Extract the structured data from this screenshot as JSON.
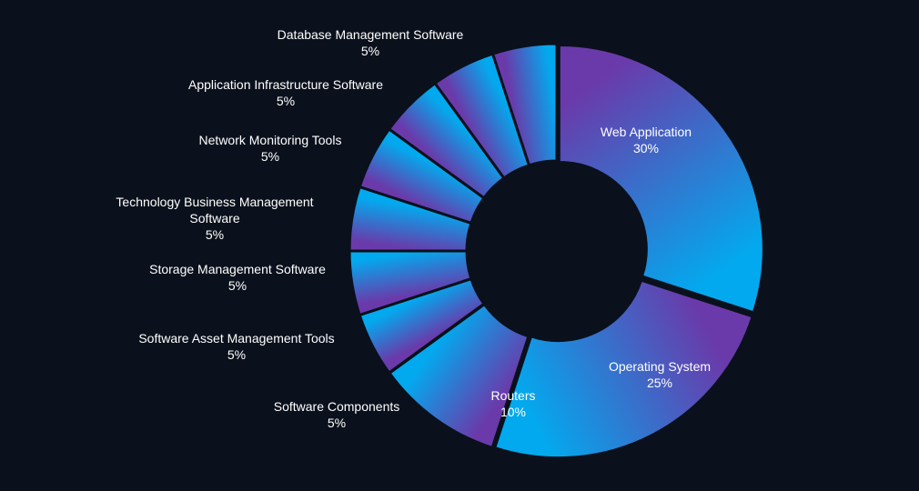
{
  "chart_data": {
    "type": "pie",
    "variant": "donut",
    "title": "",
    "slices": [
      {
        "label_lines": [
          "Web Application"
        ],
        "label": "Web Application",
        "value": 30,
        "value_text": "30%",
        "label_place": "inside"
      },
      {
        "label_lines": [
          "Operating System"
        ],
        "label": "Operating System",
        "value": 25,
        "value_text": "25%",
        "label_place": "inside"
      },
      {
        "label_lines": [
          "Routers"
        ],
        "label": "Routers",
        "value": 10,
        "value_text": "10%",
        "label_place": "inside"
      },
      {
        "label_lines": [
          "Software Components"
        ],
        "label": "Software Components",
        "value": 5,
        "value_text": "5%",
        "label_place": "outside"
      },
      {
        "label_lines": [
          "Software Asset Management Tools"
        ],
        "label": "Software Asset Management Tools",
        "value": 5,
        "value_text": "5%",
        "label_place": "outside"
      },
      {
        "label_lines": [
          "Storage Management Software"
        ],
        "label": "Storage Management Software",
        "value": 5,
        "value_text": "5%",
        "label_place": "outside"
      },
      {
        "label_lines": [
          "Technology Business Management",
          "Software"
        ],
        "label": "Technology Business Management Software",
        "value": 5,
        "value_text": "5%",
        "label_place": "outside"
      },
      {
        "label_lines": [
          "Network Monitoring Tools"
        ],
        "label": "Network Monitoring Tools",
        "value": 5,
        "value_text": "5%",
        "label_place": "outside"
      },
      {
        "label_lines": [
          "Application Infrastructure Software"
        ],
        "label": "Application Infrastructure Software",
        "value": 5,
        "value_text": "5%",
        "label_place": "outside"
      },
      {
        "label_lines": [
          "Database Management Software"
        ],
        "label": "Database Management Software",
        "value": 5,
        "value_text": "5%",
        "label_place": "outside"
      }
    ],
    "legend": "none",
    "colors": {
      "background": "#0a111c",
      "gradient_start": "#6a3aaa",
      "gradient_end": "#03a9ee",
      "label_text": "#ffffff"
    }
  }
}
